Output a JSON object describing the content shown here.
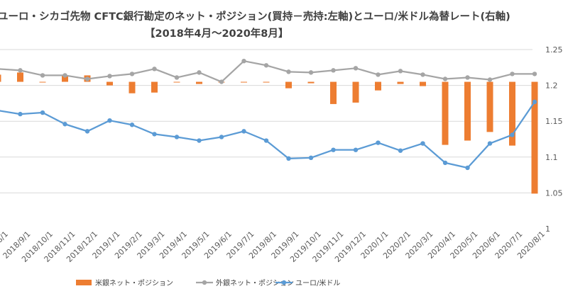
{
  "chart_data": {
    "type": "bar",
    "title_line1": "ユーロ・シカゴ先物 CFTC銀行勘定のネット・ポジション(買持－売持:左軸)とユーロ/米ドル為替レート(右軸)",
    "title_line2": "【2018年4月～2020年8月】",
    "categories": [
      "2018/8/1",
      "2018/9/1",
      "2018/10/1",
      "2018/11/1",
      "2018/12/1",
      "2019/1/1",
      "2019/2/1",
      "2019/3/1",
      "2019/4/1",
      "2019/5/1",
      "2019/6/1",
      "2019/7/1",
      "2019/8/1",
      "2019/9/1",
      "2019/10/1",
      "2019/11/1",
      "2019/12/1",
      "2020/1/1",
      "2020/2/1",
      "2020/3/1",
      "2020/4/1",
      "2020/5/1",
      "2020/6/1",
      "2020/7/1",
      "2020/8/1"
    ],
    "x_tick_labels": [
      "2018/8/1",
      "2018/9/1",
      "2018/10/1",
      "2018/11/1",
      "2018/12/1",
      "2019/1/1",
      "2019/2/1",
      "2019/3/1",
      "2019/4/1",
      "2019/5/1",
      "2019/6/1",
      "2019/7/1",
      "2019/8/1",
      "2019/9/1",
      "2019/10/1",
      "2019/11/1",
      "2019/12/1",
      "2020/1/1",
      "2020/2/1",
      "2020/3/1",
      "2020/4/1",
      "2020/5/1",
      "2020/6/1",
      "2020/7/1",
      "2020/8/1"
    ],
    "y2_ticks": [
      "1.25",
      "1.2",
      "1.15",
      "1.1",
      "1.05",
      "1"
    ],
    "y2lim": [
      1.0,
      1.25
    ],
    "series": [
      {
        "name": "米銀ネット・ポジション",
        "type": "bar",
        "axis": "left",
        "color": "#ED7D31",
        "values": [
          1.215,
          1.218,
          1.205,
          1.213,
          1.214,
          1.2,
          1.189,
          1.19,
          1.205,
          1.202,
          1.205,
          1.204,
          1.204,
          1.196,
          1.203,
          1.174,
          1.176,
          1.193,
          1.202,
          1.199,
          1.117,
          1.123,
          1.135,
          1.116,
          1.049
        ]
      },
      {
        "name": "外銀ネット・ポジション",
        "type": "line",
        "axis": "left",
        "color": "#A5A5A5",
        "values": [
          1.223,
          1.221,
          1.214,
          1.214,
          1.209,
          1.213,
          1.216,
          1.223,
          1.211,
          1.218,
          1.205,
          1.234,
          1.228,
          1.219,
          1.218,
          1.221,
          1.224,
          1.215,
          1.22,
          1.215,
          1.209,
          1.211,
          1.208,
          1.216,
          1.216
        ]
      },
      {
        "name": "ユーロ/米ドル",
        "type": "line",
        "axis": "right",
        "color": "#5B9BD5",
        "values": [
          1.165,
          1.16,
          1.162,
          1.146,
          1.136,
          1.151,
          1.145,
          1.132,
          1.128,
          1.123,
          1.128,
          1.136,
          1.123,
          1.098,
          1.099,
          1.11,
          1.11,
          1.12,
          1.109,
          1.119,
          1.092,
          1.085,
          1.119,
          1.131,
          1.177
        ]
      }
    ],
    "grid": true,
    "legend_position": "bottom",
    "colors": {
      "bar": "#ED7D31",
      "foreign": "#A5A5A5",
      "eurusd": "#5B9BD5",
      "grid": "#D9D9D9",
      "text": "#404040"
    }
  }
}
